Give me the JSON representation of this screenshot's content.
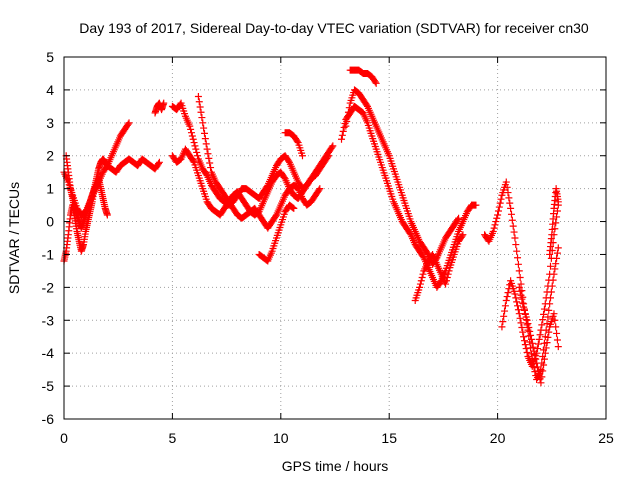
{
  "chart_data": {
    "type": "scatter",
    "title": "Day 193 of 2017, Sidereal Day-to-day VTEC variation (SDTVAR) for receiver cn30",
    "xlabel": "GPS time / hours",
    "ylabel": "SDTVAR / TECUs",
    "xlim": [
      0,
      25
    ],
    "ylim": [
      -6,
      5
    ],
    "xticks": [
      "0",
      "5",
      "10",
      "15",
      "20",
      "25"
    ],
    "yticks": [
      "-6",
      "-5",
      "-4",
      "-3",
      "-2",
      "-1",
      "0",
      "1",
      "2",
      "3",
      "4",
      "5"
    ],
    "grid": true,
    "marker": "+",
    "color": "#ff0000",
    "series": [
      {
        "x": [
          0.0,
          0.1,
          0.2,
          0.3,
          0.4,
          0.5,
          0.6,
          0.7,
          0.8,
          0.9,
          1.0,
          1.1,
          1.2,
          1.3,
          1.4,
          1.5,
          1.6,
          1.7,
          1.8,
          1.9,
          2.0,
          2.2,
          2.4,
          2.6,
          2.8,
          3.0,
          3.2,
          3.4,
          3.6,
          3.8,
          4.0,
          4.2,
          4.4
        ],
        "y": [
          -1.2,
          -0.9,
          -0.4,
          0.2,
          0.5,
          0.1,
          -0.3,
          -0.6,
          -0.9,
          -0.7,
          -0.3,
          0.0,
          0.3,
          0.6,
          1.0,
          1.3,
          1.6,
          1.8,
          1.9,
          1.8,
          1.7,
          1.6,
          1.5,
          1.7,
          1.8,
          1.9,
          1.8,
          1.7,
          1.9,
          1.8,
          1.7,
          1.6,
          1.8
        ]
      },
      {
        "x": [
          0.1,
          0.2,
          0.3,
          0.4,
          0.5,
          0.6,
          0.7,
          0.8,
          0.9,
          1.0,
          1.1,
          1.2,
          1.3,
          1.4,
          1.5,
          1.6,
          1.7,
          1.8,
          1.9,
          2.0
        ],
        "y": [
          2.0,
          1.5,
          1.0,
          0.7,
          0.4,
          0.2,
          0.0,
          -0.2,
          0.0,
          0.2,
          0.4,
          0.6,
          0.8,
          1.0,
          1.1,
          1.3,
          1.0,
          0.7,
          0.4,
          0.2
        ]
      },
      {
        "x": [
          0.0,
          0.2,
          0.4,
          0.6,
          0.8,
          1.0,
          1.2,
          1.4,
          1.6,
          1.8,
          2.0,
          2.2,
          2.4,
          2.6,
          2.8,
          3.0
        ],
        "y": [
          1.5,
          1.2,
          0.8,
          0.4,
          0.2,
          0.3,
          0.6,
          0.9,
          1.2,
          1.5,
          1.7,
          2.0,
          2.3,
          2.6,
          2.8,
          3.0
        ]
      },
      {
        "x": [
          4.2,
          4.3,
          4.4,
          4.5,
          4.6
        ],
        "y": [
          3.3,
          3.5,
          3.6,
          3.4,
          3.6
        ]
      },
      {
        "x": [
          5.0,
          5.2,
          5.4,
          5.6,
          5.8,
          6.0,
          6.2,
          6.4,
          6.6,
          6.8,
          7.0,
          7.2,
          7.4,
          7.6,
          7.8,
          8.0,
          8.2,
          8.4,
          8.6,
          8.8,
          9.0,
          9.2,
          9.4,
          9.6,
          9.8,
          10.0,
          10.2,
          10.4,
          10.6,
          10.8,
          11.0,
          11.2,
          11.4,
          11.6,
          11.8,
          12.0,
          12.2,
          12.4
        ],
        "y": [
          3.5,
          3.4,
          3.6,
          3.2,
          2.9,
          2.4,
          1.9,
          1.6,
          1.4,
          1.1,
          0.9,
          0.7,
          0.6,
          0.5,
          0.6,
          0.8,
          1.0,
          1.0,
          0.9,
          0.8,
          0.7,
          0.9,
          1.1,
          1.4,
          1.7,
          1.9,
          2.0,
          1.8,
          1.5,
          1.2,
          1.0,
          1.1,
          1.3,
          1.5,
          1.7,
          1.9,
          2.1,
          2.3
        ]
      },
      {
        "x": [
          5.0,
          5.2,
          5.4,
          5.6,
          5.8,
          6.0,
          6.2,
          6.4,
          6.6,
          6.8,
          7.0,
          7.2,
          7.4,
          7.6,
          7.8,
          8.0,
          8.2,
          8.4,
          8.6,
          8.8,
          9.0,
          9.2,
          9.4,
          9.6,
          9.8,
          10.0,
          10.2,
          10.4,
          10.6,
          10.8,
          11.0,
          11.2,
          11.4,
          11.6,
          11.8,
          12.0,
          12.2
        ],
        "y": [
          2.0,
          1.8,
          1.9,
          2.2,
          2.0,
          1.8,
          1.4,
          1.0,
          0.6,
          0.4,
          0.3,
          0.2,
          0.4,
          0.6,
          0.8,
          0.9,
          0.7,
          0.5,
          0.3,
          0.2,
          0.3,
          0.6,
          0.9,
          1.2,
          1.4,
          1.5,
          1.3,
          1.0,
          0.8,
          0.7,
          0.9,
          1.1,
          1.3,
          1.4,
          1.6,
          1.8,
          2.0
        ]
      },
      {
        "x": [
          6.2,
          6.4,
          6.6,
          6.8,
          7.0,
          7.2,
          7.4,
          7.6,
          7.8,
          8.0,
          8.2,
          8.4,
          8.6,
          8.8,
          9.0,
          9.2,
          9.4,
          9.6,
          9.8,
          10.0,
          10.2,
          10.4,
          10.6,
          10.8,
          11.0,
          11.2,
          11.4,
          11.6,
          11.8
        ],
        "y": [
          3.8,
          3.0,
          2.2,
          1.5,
          1.2,
          1.0,
          0.8,
          0.6,
          0.4,
          0.2,
          0.1,
          0.2,
          0.3,
          0.4,
          0.2,
          0.0,
          -0.2,
          0.0,
          0.2,
          0.5,
          0.8,
          1.0,
          1.1,
          1.0,
          0.7,
          0.5,
          0.6,
          0.8,
          1.0
        ]
      },
      {
        "x": [
          9.0,
          9.2,
          9.4,
          9.6,
          9.8,
          10.0,
          10.2,
          10.4,
          10.6
        ],
        "y": [
          -1.0,
          -1.1,
          -1.2,
          -0.9,
          -0.5,
          -0.1,
          0.3,
          0.5,
          0.4
        ]
      },
      {
        "x": [
          10.2,
          10.4,
          10.6,
          10.8,
          11.0
        ],
        "y": [
          2.7,
          2.7,
          2.6,
          2.4,
          2.0
        ]
      },
      {
        "x": [
          12.8,
          13.0,
          13.2,
          13.4,
          13.6,
          13.8,
          14.0,
          14.2,
          14.4,
          14.6,
          14.8,
          15.0,
          15.2,
          15.4,
          15.6,
          15.8,
          16.0,
          16.2,
          16.4,
          16.6,
          16.8,
          17.0,
          17.2,
          17.4,
          17.6,
          17.8,
          18.0,
          18.2,
          18.4,
          18.6,
          18.8,
          19.0
        ],
        "y": [
          2.5,
          3.1,
          3.3,
          3.5,
          3.4,
          3.3,
          3.0,
          2.6,
          2.2,
          1.8,
          1.4,
          1.0,
          0.6,
          0.3,
          0.0,
          -0.2,
          -0.4,
          -0.7,
          -0.9,
          -1.1,
          -1.4,
          -1.7,
          -2.0,
          -1.8,
          -1.5,
          -1.1,
          -0.7,
          -0.3,
          0.0,
          0.3,
          0.5,
          0.5
        ]
      },
      {
        "x": [
          13.0,
          13.2,
          13.4,
          13.6,
          13.8,
          14.0,
          14.2,
          14.4,
          14.6,
          14.8,
          15.0,
          15.2,
          15.4,
          15.6,
          15.8,
          16.0,
          16.2,
          16.4,
          16.6,
          16.8,
          17.0,
          17.2,
          17.4,
          17.6,
          17.8,
          18.0,
          18.2
        ],
        "y": [
          2.9,
          3.6,
          4.0,
          3.9,
          3.7,
          3.5,
          3.2,
          2.9,
          2.6,
          2.3,
          2.0,
          1.6,
          1.2,
          0.8,
          0.4,
          0.0,
          -0.3,
          -0.6,
          -0.8,
          -1.0,
          -1.3,
          -1.1,
          -0.8,
          -0.5,
          -0.3,
          -0.1,
          0.1
        ]
      },
      {
        "x": [
          13.2,
          13.4,
          13.6,
          13.8,
          14.0,
          14.2,
          14.4
        ],
        "y": [
          4.6,
          4.6,
          4.6,
          4.5,
          4.5,
          4.4,
          4.2
        ]
      },
      {
        "x": [
          16.2,
          16.4,
          16.6,
          16.8,
          17.0,
          17.2,
          17.4,
          17.6,
          17.8,
          18.0,
          18.2,
          18.4
        ],
        "y": [
          -2.4,
          -2.0,
          -1.5,
          -1.2,
          -1.0,
          -1.3,
          -1.6,
          -1.9,
          -1.4,
          -1.0,
          -0.6,
          -0.4
        ]
      },
      {
        "x": [
          19.4,
          19.6,
          19.8,
          20.0,
          20.2,
          20.4,
          20.6,
          20.8,
          21.0,
          21.2,
          21.4,
          21.6,
          21.8,
          22.0,
          22.2,
          22.4,
          22.6,
          22.8
        ],
        "y": [
          -0.4,
          -0.6,
          -0.3,
          0.2,
          0.8,
          1.2,
          0.4,
          -0.5,
          -1.5,
          -2.5,
          -3.3,
          -4.2,
          -4.8,
          -4.5,
          -3.5,
          -2.5,
          -1.6,
          -0.8
        ]
      },
      {
        "x": [
          20.2,
          20.4,
          20.6,
          20.8,
          21.0,
          21.2,
          21.4,
          21.6,
          21.8,
          22.0,
          22.2,
          22.4,
          22.6,
          22.8
        ],
        "y": [
          -3.2,
          -2.4,
          -1.8,
          -2.2,
          -2.8,
          -3.5,
          -4.1,
          -4.4,
          -4.0,
          -3.3,
          -2.5,
          -1.6,
          -0.4,
          0.5
        ]
      },
      {
        "x": [
          21.0,
          21.2,
          21.4,
          21.6,
          21.8,
          22.0,
          22.2,
          22.4,
          22.6,
          22.8
        ],
        "y": [
          -2.0,
          -2.6,
          -3.1,
          -3.7,
          -4.3,
          -4.9,
          -4.0,
          -3.2,
          -2.8,
          -3.8
        ]
      },
      {
        "x": [
          22.4,
          22.5,
          22.6,
          22.7,
          22.8
        ],
        "y": [
          -1.0,
          -0.4,
          0.4,
          1.0,
          0.6
        ]
      }
    ]
  }
}
